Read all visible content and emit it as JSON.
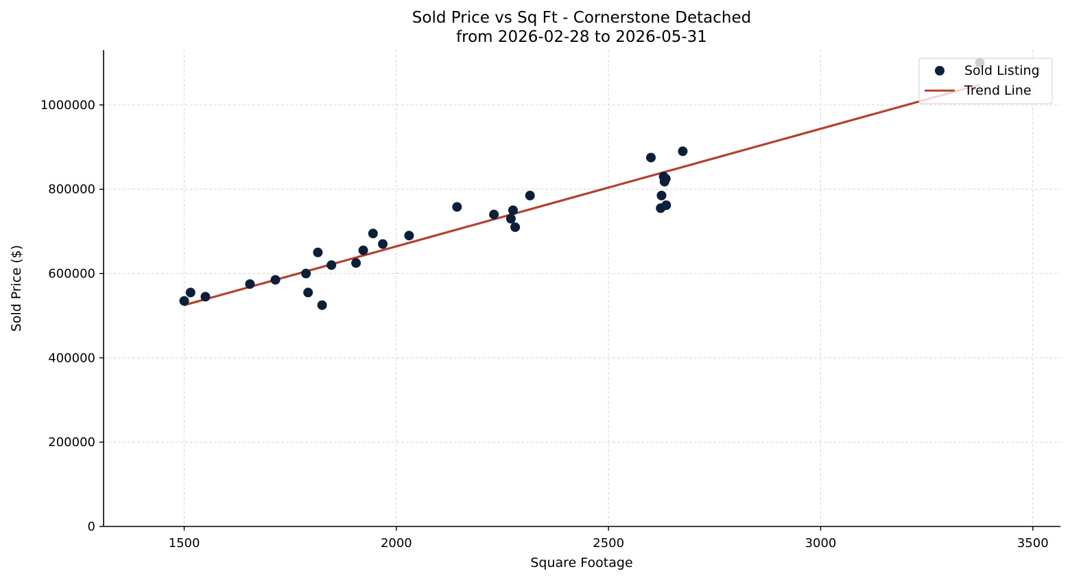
{
  "chart_data": {
    "type": "scatter",
    "title": "Sold Price vs Sq Ft - Cornerstone Detached",
    "subtitle": "from 2026-02-28 to 2026-05-31",
    "xlabel": "Square Footage",
    "ylabel": "Sold Price ($)",
    "xlim": [
      1310,
      3565
    ],
    "ylim": [
      0,
      1130000
    ],
    "xticks": [
      1500,
      2000,
      2500,
      3000,
      3500
    ],
    "yticks": [
      0,
      200000,
      400000,
      600000,
      800000,
      1000000
    ],
    "grid": true,
    "legend_position": "top-right",
    "colors": {
      "points": "#0b1f3a",
      "trend": "#b5402f"
    },
    "series": [
      {
        "name": "Sold Listing",
        "kind": "scatter",
        "points": [
          [
            1500,
            535000
          ],
          [
            1515,
            555000
          ],
          [
            1550,
            545000
          ],
          [
            1655,
            575000
          ],
          [
            1715,
            585000
          ],
          [
            1787,
            600000
          ],
          [
            1792,
            555000
          ],
          [
            1815,
            650000
          ],
          [
            1825,
            525000
          ],
          [
            1847,
            620000
          ],
          [
            1905,
            625000
          ],
          [
            1922,
            655000
          ],
          [
            1945,
            695000
          ],
          [
            1968,
            670000
          ],
          [
            2030,
            690000
          ],
          [
            2143,
            758000
          ],
          [
            2230,
            740000
          ],
          [
            2270,
            730000
          ],
          [
            2275,
            750000
          ],
          [
            2280,
            710000
          ],
          [
            2315,
            785000
          ],
          [
            2600,
            875000
          ],
          [
            2623,
            755000
          ],
          [
            2625,
            785000
          ],
          [
            2630,
            830000
          ],
          [
            2632,
            818000
          ],
          [
            2635,
            825000
          ],
          [
            2636,
            762000
          ],
          [
            2675,
            890000
          ],
          [
            3375,
            1100000
          ]
        ]
      },
      {
        "name": "Trend Line",
        "kind": "line",
        "points": [
          [
            1500,
            525000
          ],
          [
            3375,
            1048000
          ]
        ]
      }
    ]
  }
}
